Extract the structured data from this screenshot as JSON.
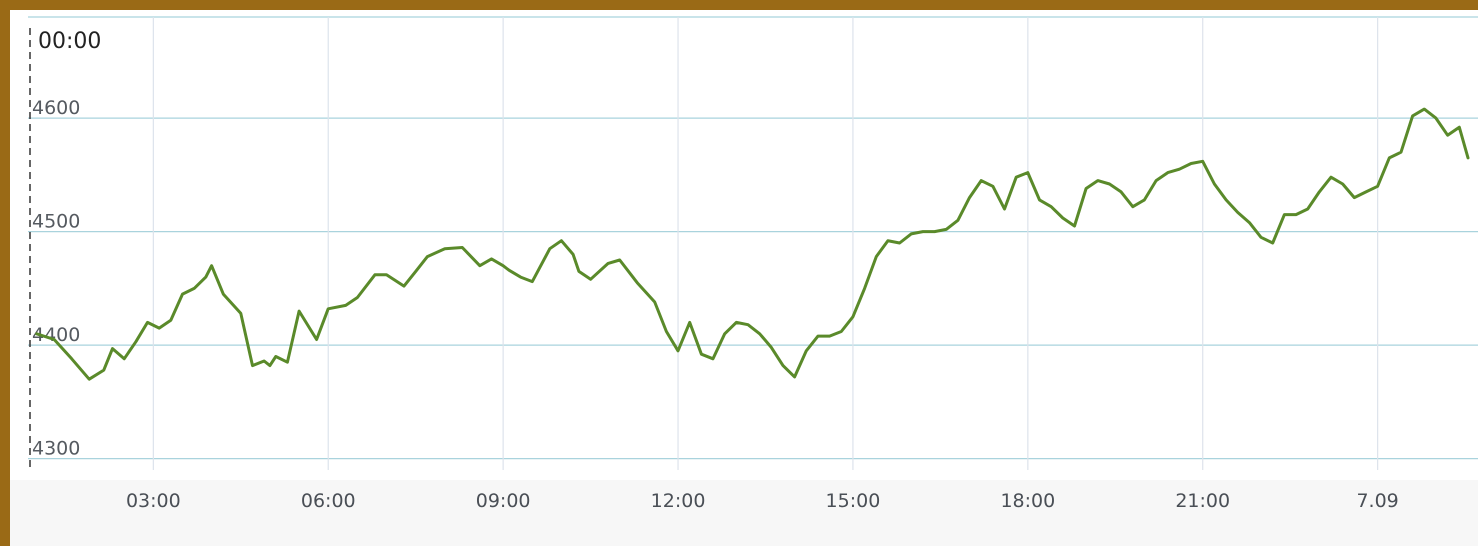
{
  "cursor": {
    "time_label": "00:00"
  },
  "colors": {
    "line": "#5a8a2a",
    "frame": "#9a6a16",
    "grid": "#a9d3dd",
    "background": "#ffffff"
  },
  "chart_data": {
    "type": "line",
    "title": "",
    "xlabel": "",
    "ylabel": "",
    "x_unit": "hours",
    "xlim": [
      0.85,
      25.55
    ],
    "ylim": [
      4290,
      4690
    ],
    "y_ticks": [
      4300,
      4400,
      4500,
      4600
    ],
    "y_tick_labels": [
      "4300",
      "4400",
      "4500",
      "4600"
    ],
    "x_ticks": [
      3,
      6,
      9,
      12,
      15,
      18,
      21,
      24
    ],
    "x_tick_labels": [
      "03:00",
      "06:00",
      "09:00",
      "12:00",
      "15:00",
      "18:00",
      "21:00",
      "7.09"
    ],
    "grid": "on",
    "legend": "none",
    "series": [
      {
        "x": [
          1.0,
          1.3,
          1.6,
          1.9,
          2.15,
          2.3,
          2.5,
          2.7,
          2.9,
          3.1,
          3.3,
          3.5,
          3.7,
          3.9,
          4.0,
          4.2,
          4.5,
          4.7,
          4.9,
          5.0,
          5.1,
          5.3,
          5.5,
          5.8,
          6.0,
          6.3,
          6.5,
          6.8,
          7.0,
          7.3,
          7.5,
          7.7,
          8.0,
          8.3,
          8.6,
          8.8,
          9.0,
          9.1,
          9.3,
          9.5,
          9.8,
          10.0,
          10.2,
          10.3,
          10.5,
          10.8,
          11.0,
          11.3,
          11.6,
          11.8,
          12.0,
          12.2,
          12.4,
          12.6,
          12.8,
          13.0,
          13.2,
          13.4,
          13.6,
          13.8,
          14.0,
          14.2,
          14.4,
          14.6,
          14.8,
          15.0,
          15.2,
          15.4,
          15.6,
          15.8,
          16.0,
          16.2,
          16.4,
          16.6,
          16.8,
          17.0,
          17.2,
          17.4,
          17.6,
          17.8,
          18.0,
          18.2,
          18.4,
          18.6,
          18.8,
          19.0,
          19.2,
          19.4,
          19.6,
          19.8,
          20.0,
          20.2,
          20.4,
          20.6,
          20.8,
          21.0,
          21.2,
          21.4,
          21.6,
          21.8,
          22.0,
          22.2,
          22.4,
          22.6,
          22.8,
          23.0,
          23.2,
          23.4,
          23.6,
          23.8,
          24.0,
          24.2,
          24.4,
          24.6,
          24.8,
          25.0,
          25.2,
          25.4
        ],
        "y": [
          4410,
          4405,
          4388,
          4370,
          4378,
          4397,
          4388,
          4403,
          4420,
          4415,
          4422,
          4445,
          4450,
          4460,
          4470,
          4445,
          4428,
          4382,
          4386,
          4382,
          4390,
          4385,
          4430,
          4405,
          4432,
          4435,
          4442,
          4462,
          4462,
          4452,
          4465,
          4478,
          4485,
          4486,
          4470,
          4476,
          4470,
          4466,
          4460,
          4456,
          4485,
          4492,
          4480,
          4465,
          4458,
          4472,
          4475,
          4455,
          4438,
          4412,
          4395,
          4420,
          4392,
          4388,
          4410,
          4420,
          4418,
          4410,
          4398,
          4382,
          4372,
          4395,
          4408,
          4408,
          4412,
          4425,
          4450,
          4478,
          4492,
          4490,
          4498,
          4500,
          4500,
          4502,
          4510,
          4530,
          4545,
          4540,
          4520,
          4548,
          4552,
          4528,
          4522,
          4512,
          4505,
          4538,
          4545,
          4542,
          4535,
          4522,
          4528,
          4545,
          4552,
          4555,
          4560,
          4562,
          4542,
          4528,
          4517,
          4508,
          4495,
          4490,
          4515,
          4515,
          4520,
          4535,
          4548,
          4542,
          4530,
          4535,
          4540,
          4565,
          4570,
          4602,
          4608,
          4600,
          4585,
          4592
        ],
        "x_extra": [
          25.55
        ],
        "y_extra": [
          4565
        ]
      }
    ]
  }
}
